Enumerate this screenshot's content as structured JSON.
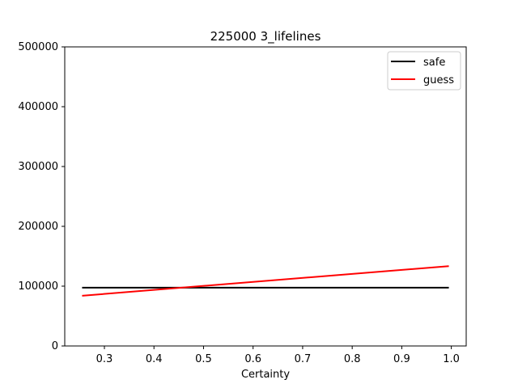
{
  "chart_data": {
    "type": "line",
    "title": "225000 3_lifelines",
    "xlabel": "Certainty",
    "ylabel": "",
    "xlim": [
      0.22,
      1.03
    ],
    "ylim": [
      0,
      500000
    ],
    "xticks": [
      "0.3",
      "0.4",
      "0.5",
      "0.6",
      "0.7",
      "0.8",
      "0.9",
      "1.0"
    ],
    "yticks": [
      "0",
      "100000",
      "200000",
      "300000",
      "400000",
      "500000"
    ],
    "grid": false,
    "legend_position": "top-right",
    "series": [
      {
        "name": "safe",
        "color": "#000000",
        "x": [
          0.255,
          0.995
        ],
        "y": [
          97500,
          97500
        ]
      },
      {
        "name": "guess",
        "color": "#ff0000",
        "x": [
          0.255,
          0.995
        ],
        "y": [
          84000,
          133500
        ]
      }
    ]
  }
}
